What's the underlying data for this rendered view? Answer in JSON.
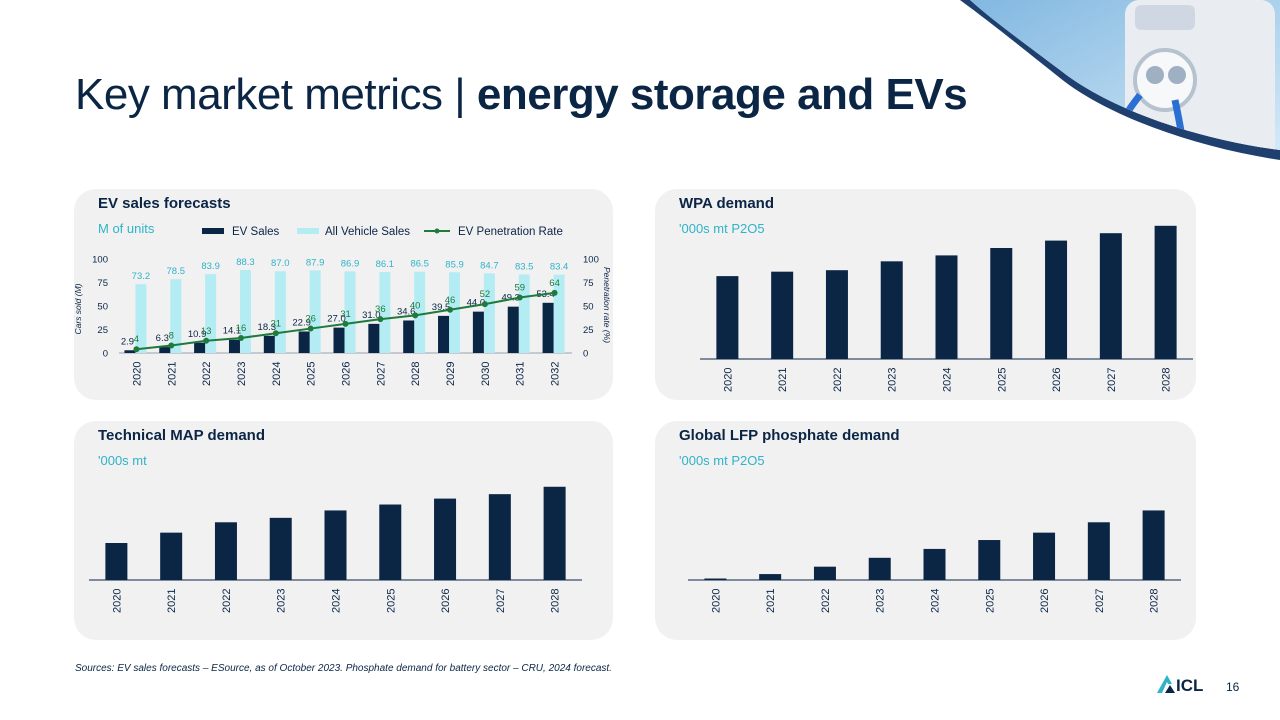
{
  "page": {
    "title_regular": "Key market metrics | ",
    "title_bold": "energy storage and EVs",
    "footer": "Sources:  EV sales forecasts – ESource,  as of October 2023.  Phosphate demand for battery sector – CRU, 2024 forecast.",
    "logo_text": "ICL",
    "page_number": "16"
  },
  "colors": {
    "navy": "#0b2545",
    "cyan": "#2fb3c8",
    "light_cyan": "#b4ecf4",
    "green": "#1e7b3c",
    "panel": "#f1f1f2"
  },
  "chart_data": [
    {
      "id": "ev",
      "type": "bar",
      "title": "EV sales forecasts",
      "subtitle": "M of units",
      "ylabel": "Cars sold (M)",
      "y2label": "Penetration rate (%)",
      "ylim": [
        0,
        100
      ],
      "y_ticks": [
        0,
        25,
        50,
        75,
        100
      ],
      "y2_ticks": [
        0,
        25,
        50,
        75,
        100
      ],
      "legend_position": "top-right",
      "categories": [
        "2020",
        "2021",
        "2022",
        "2023",
        "2024",
        "2025",
        "2026",
        "2027",
        "2028",
        "2029",
        "2030",
        "2031",
        "2032"
      ],
      "series": [
        {
          "name": "EV Sales",
          "type": "bar",
          "color": "#0b2545",
          "values": [
            2.9,
            6.3,
            10.9,
            14.1,
            18.3,
            22.9,
            27.0,
            31.0,
            34.6,
            39.5,
            44.0,
            49.3,
            53.4
          ],
          "labels": [
            "2.9",
            "6.3",
            "10.9",
            "14.1",
            "18.3",
            "22.9",
            "27.0",
            "31.0",
            "34.6",
            "39.5",
            "44.0",
            "49.3",
            "53.4"
          ]
        },
        {
          "name": "All Vehicle Sales",
          "type": "bar",
          "color": "#b4ecf4",
          "values": [
            73.2,
            78.5,
            83.9,
            88.3,
            87.0,
            87.9,
            86.9,
            86.1,
            86.5,
            85.9,
            84.7,
            83.5,
            83.4
          ],
          "labels": [
            "73.2",
            "78.5",
            "83.9",
            "88.3",
            "87.0",
            "87.9",
            "86.9",
            "86.1",
            "86.5",
            "85.9",
            "84.7",
            "83.5",
            "83.4"
          ]
        },
        {
          "name": "EV Penetration  Rate",
          "type": "line",
          "color": "#1e7b3c",
          "values": [
            4,
            8,
            13,
            16,
            21,
            26,
            31,
            36,
            40,
            46,
            52,
            59,
            64
          ],
          "labels": [
            "4",
            "8",
            "13",
            "16",
            "21",
            "26",
            "31",
            "36",
            "40",
            "46",
            "52",
            "59",
            "64"
          ]
        }
      ]
    },
    {
      "id": "wpa",
      "type": "bar",
      "title": "WPA demand",
      "subtitle": "'000s mt P2O5",
      "categories": [
        "2020",
        "2021",
        "2022",
        "2023",
        "2024",
        "2025",
        "2026",
        "2027",
        "2028"
      ],
      "values": [
        56,
        59,
        60,
        66,
        70,
        75,
        80,
        85,
        90
      ],
      "ylim": [
        0,
        100
      ]
    },
    {
      "id": "map",
      "type": "bar",
      "title": "Technical  MAP demand",
      "subtitle": "'000s mt",
      "categories": [
        "2020",
        "2021",
        "2022",
        "2023",
        "2024",
        "2025",
        "2026",
        "2027",
        "2028"
      ],
      "values": [
        25,
        32,
        39,
        42,
        47,
        51,
        55,
        58,
        63
      ],
      "ylim": [
        0,
        100
      ]
    },
    {
      "id": "lfp",
      "type": "bar",
      "title": "Global LFP phosphate demand",
      "subtitle": "'000s mt P2O5",
      "categories": [
        "2020",
        "2021",
        "2022",
        "2023",
        "2024",
        "2025",
        "2026",
        "2027",
        "2028"
      ],
      "values": [
        1,
        4,
        9,
        15,
        21,
        27,
        32,
        39,
        47
      ],
      "ylim": [
        0,
        100
      ]
    }
  ]
}
